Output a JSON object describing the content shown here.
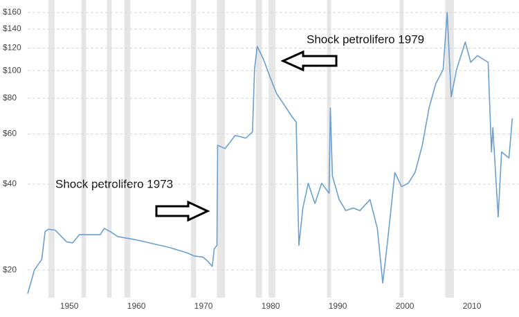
{
  "chart_data": {
    "type": "line",
    "log_y": true,
    "grid": true,
    "annotations": [
      "Shock petrolifero 1973",
      "Shock petrolifero 1979"
    ],
    "xlim": [
      1943.8,
      2017.0
    ],
    "xticks": [
      1950,
      1960,
      1970,
      1980,
      1990,
      2000,
      2010
    ],
    "ylim": [
      16,
      177
    ],
    "yticks": [
      {
        "value": 20,
        "label": "$20"
      },
      {
        "value": 40,
        "label": "$40"
      },
      {
        "value": 60,
        "label": "$60"
      },
      {
        "value": 80,
        "label": "$80"
      },
      {
        "value": 100,
        "label": "$100"
      },
      {
        "value": 120,
        "label": "$120"
      },
      {
        "value": 140,
        "label": "$140"
      },
      {
        "value": 160,
        "label": "$160"
      }
    ],
    "shading_color": "#e6e6e6",
    "shading": [
      [
        1946.9,
        1947.8
      ],
      [
        1951.8,
        1952.5
      ],
      [
        1955.6,
        1956.3
      ],
      [
        1958.2,
        1959.1
      ],
      [
        1968.1,
        1968.9
      ],
      [
        1972.0,
        1973.2
      ],
      [
        1977.8,
        1978.7
      ],
      [
        1979.7,
        1980.7
      ],
      [
        1988.4,
        1989.0
      ],
      [
        1999.2,
        1999.8
      ],
      [
        2006.0,
        2007.3
      ]
    ],
    "series": [
      {
        "color": "#6a9fcf",
        "x": [
          1943.8,
          1944.8,
          1945.9,
          1946.4,
          1946.9,
          1947.9,
          1949.6,
          1950.5,
          1951.5,
          1954.6,
          1955.2,
          1956.2,
          1957.2,
          1960.0,
          1964.9,
          1967.5,
          1968.6,
          1969.9,
          1970.6,
          1971.3,
          1971.6,
          1972.0,
          1972.1,
          1973.2,
          1974.0,
          1974.7,
          1976.3,
          1977.3,
          1977.6,
          1978.0,
          1978.9,
          1979.9,
          1980.9,
          1982.0,
          1983.0,
          1983.8,
          1984.2,
          1984.8,
          1985.6,
          1986.6,
          1987.6,
          1988.7,
          1988.9,
          1989.2,
          1990.2,
          1991.2,
          1992.3,
          1993.3,
          1994.8,
          1995.9,
          1996.7,
          1997.4,
          1998.5,
          1999.5,
          2000.5,
          2001.5,
          2002.6,
          2003.6,
          2004.6,
          2005.7,
          2006.3,
          2006.9,
          2007.7,
          2009.0,
          2009.8,
          2010.8,
          2012.4,
          2012.9,
          2013.1,
          2013.9,
          2014.4,
          2015.5,
          2016.0
        ],
        "values": [
          16.5,
          20,
          21.8,
          27.3,
          27.8,
          27.6,
          25.1,
          24.9,
          26.6,
          26.6,
          28.0,
          27.2,
          26.2,
          25.5,
          24.0,
          23.0,
          22.4,
          22.2,
          21.5,
          20.6,
          23.7,
          24.4,
          54.8,
          53.3,
          56.3,
          59.3,
          58,
          61,
          101,
          121.7,
          110,
          95,
          83,
          76,
          70,
          66,
          24.4,
          33,
          40.3,
          34.2,
          40.3,
          37.2,
          74,
          42.7,
          35.3,
          32.3,
          33,
          32.3,
          35.3,
          28,
          18,
          25,
          43.9,
          39.2,
          40.3,
          43.9,
          54.8,
          74,
          90,
          101,
          160,
          81,
          101,
          126,
          107,
          113,
          107,
          51.9,
          63.2,
          30.7,
          51.9,
          49.4,
          68
        ]
      }
    ]
  }
}
